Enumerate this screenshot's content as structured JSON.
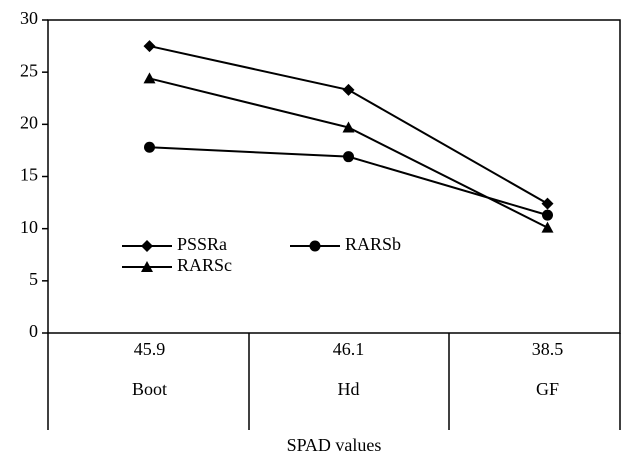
{
  "chart_data": {
    "type": "line",
    "x_label": "SPAD values",
    "categories": [
      "Boot",
      "Hd",
      "GF"
    ],
    "spad_values": [
      45.9,
      46.1,
      38.5
    ],
    "series": [
      {
        "name": "PSSRa",
        "color": "#000000",
        "marker": "diamond",
        "values": [
          27.5,
          23.3,
          12.4
        ]
      },
      {
        "name": "RARSb",
        "color": "#000000",
        "marker": "circle",
        "values": [
          17.8,
          16.9,
          11.3
        ]
      },
      {
        "name": "RARSc",
        "color": "#000000",
        "marker": "triangle",
        "values": [
          24.4,
          19.7,
          10.1
        ]
      }
    ],
    "ylim": [
      0,
      30
    ],
    "yticks": [
      0,
      5,
      10,
      15,
      20,
      25,
      30
    ],
    "grid": false,
    "legend": "lower left"
  }
}
